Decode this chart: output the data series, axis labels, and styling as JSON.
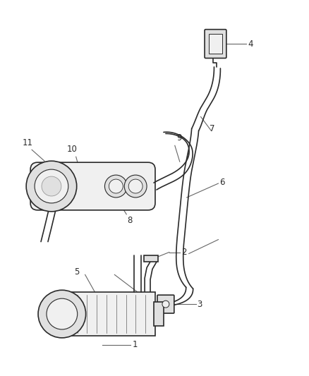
{
  "bg_color": "#ffffff",
  "line_color": "#2a2a2a",
  "leader_color": "#666666",
  "fill_light": "#f0f0f0",
  "fill_mid": "#e0e0e0",
  "fill_dark": "#cccccc",
  "lw_main": 1.2,
  "lw_thin": 0.8,
  "label_fs": 8.5,
  "figsize": [
    4.38,
    5.33
  ],
  "dpi": 100
}
